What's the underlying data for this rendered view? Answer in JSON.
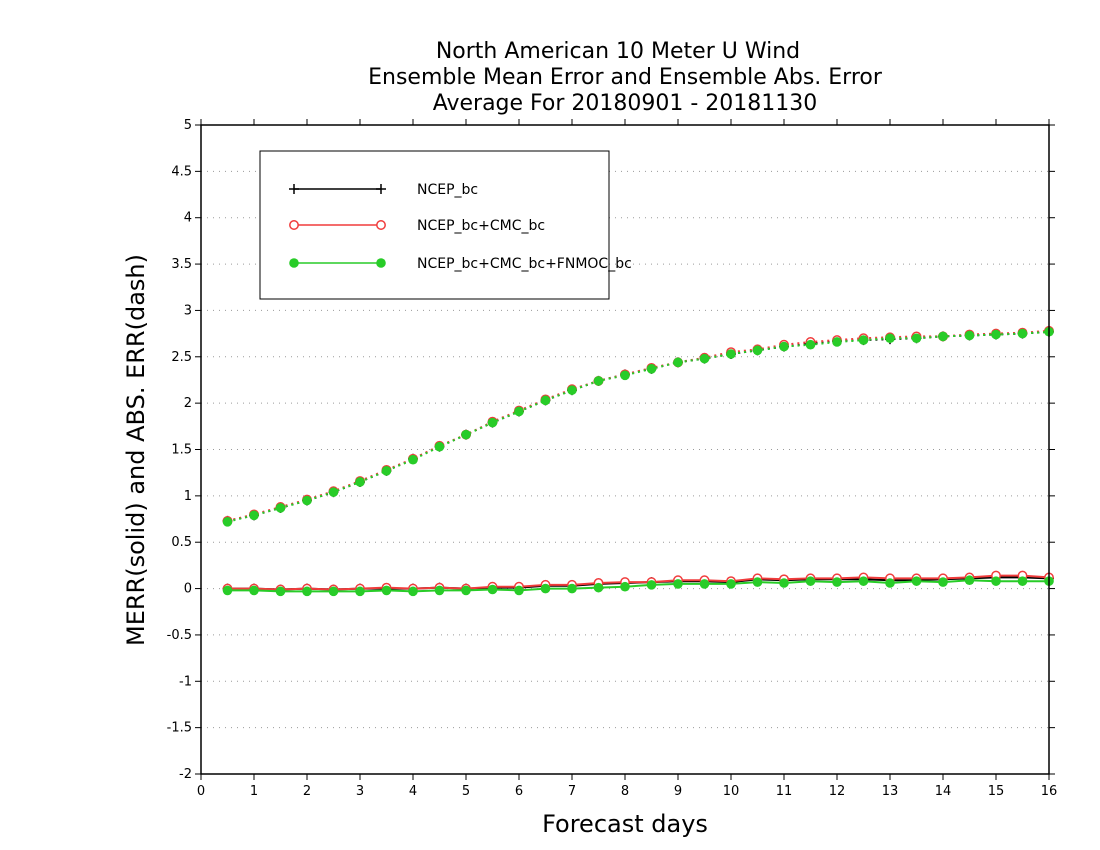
{
  "chart_data": {
    "type": "line",
    "title": [
      "North American 10 Meter U Wind",
      "Ensemble Mean Error and Ensemble Abs. Error",
      "Average For 20180901 - 20181130"
    ],
    "xlabel": "Forecast days",
    "ylabel": "MERR(solid) and ABS. ERR(dash)",
    "xlim": [
      0,
      16
    ],
    "ylim": [
      -2,
      5
    ],
    "xticks": [
      "0",
      "1",
      "2",
      "3",
      "4",
      "5",
      "6",
      "7",
      "8",
      "9",
      "10",
      "11",
      "12",
      "13",
      "14",
      "15",
      "16"
    ],
    "yticks": [
      "-2",
      "-1.5",
      "-1",
      "-0.5",
      "0",
      "0.5",
      "1",
      "1.5",
      "2",
      "2.5",
      "3",
      "3.5",
      "4",
      "4.5",
      "5"
    ],
    "grid": true,
    "legend_position": "top-left",
    "x": [
      0.5,
      1,
      1.5,
      2,
      2.5,
      3,
      3.5,
      4,
      4.5,
      5,
      5.5,
      6,
      6.5,
      7,
      7.5,
      8,
      8.5,
      9,
      9.5,
      10,
      10.5,
      11,
      11.5,
      12,
      12.5,
      13,
      13.5,
      14,
      14.5,
      15,
      15.5,
      16
    ],
    "series": [
      {
        "name": "NCEP_bc",
        "color": "#000000",
        "marker": "plus",
        "merr": [
          0.0,
          0.0,
          -0.01,
          0.0,
          -0.01,
          0.0,
          0.0,
          0.0,
          0.01,
          0.0,
          0.01,
          0.01,
          0.03,
          0.03,
          0.05,
          0.06,
          0.07,
          0.08,
          0.08,
          0.07,
          0.1,
          0.09,
          0.1,
          0.1,
          0.1,
          0.09,
          0.09,
          0.1,
          0.11,
          0.12,
          0.12,
          0.11
        ],
        "abserr": [
          0.73,
          0.79,
          0.87,
          0.95,
          1.04,
          1.15,
          1.27,
          1.4,
          1.53,
          1.66,
          1.79,
          1.91,
          2.03,
          2.14,
          2.24,
          2.31,
          2.37,
          2.44,
          2.48,
          2.53,
          2.57,
          2.61,
          2.64,
          2.67,
          2.68,
          2.69,
          2.7,
          2.72,
          2.73,
          2.74,
          2.75,
          2.77
        ]
      },
      {
        "name": "NCEP_bc+CMC_bc",
        "color": "#f03c3c",
        "marker": "open-circle",
        "merr": [
          0.0,
          0.0,
          -0.01,
          0.0,
          -0.01,
          0.0,
          0.01,
          0.0,
          0.01,
          0.0,
          0.02,
          0.02,
          0.04,
          0.04,
          0.06,
          0.07,
          0.07,
          0.09,
          0.09,
          0.08,
          0.11,
          0.1,
          0.11,
          0.11,
          0.12,
          0.11,
          0.11,
          0.11,
          0.12,
          0.14,
          0.14,
          0.12
        ],
        "abserr": [
          0.73,
          0.8,
          0.88,
          0.96,
          1.05,
          1.16,
          1.28,
          1.4,
          1.54,
          1.66,
          1.8,
          1.92,
          2.04,
          2.15,
          2.24,
          2.31,
          2.38,
          2.44,
          2.49,
          2.55,
          2.58,
          2.63,
          2.66,
          2.68,
          2.7,
          2.71,
          2.72,
          2.72,
          2.74,
          2.75,
          2.76,
          2.78
        ]
      },
      {
        "name": "NCEP_bc+CMC_bc+FNMOC_bc",
        "color": "#28cc28",
        "marker": "filled-circle",
        "merr": [
          -0.02,
          -0.02,
          -0.03,
          -0.03,
          -0.03,
          -0.03,
          -0.02,
          -0.03,
          -0.02,
          -0.02,
          -0.01,
          -0.02,
          0.0,
          0.0,
          0.01,
          0.02,
          0.04,
          0.05,
          0.05,
          0.05,
          0.07,
          0.06,
          0.08,
          0.07,
          0.08,
          0.06,
          0.08,
          0.07,
          0.09,
          0.08,
          0.08,
          0.08
        ],
        "abserr": [
          0.72,
          0.79,
          0.87,
          0.95,
          1.04,
          1.15,
          1.27,
          1.39,
          1.53,
          1.66,
          1.79,
          1.91,
          2.03,
          2.14,
          2.24,
          2.3,
          2.37,
          2.44,
          2.48,
          2.53,
          2.57,
          2.61,
          2.63,
          2.66,
          2.68,
          2.7,
          2.7,
          2.72,
          2.73,
          2.74,
          2.75,
          2.77
        ]
      }
    ]
  }
}
